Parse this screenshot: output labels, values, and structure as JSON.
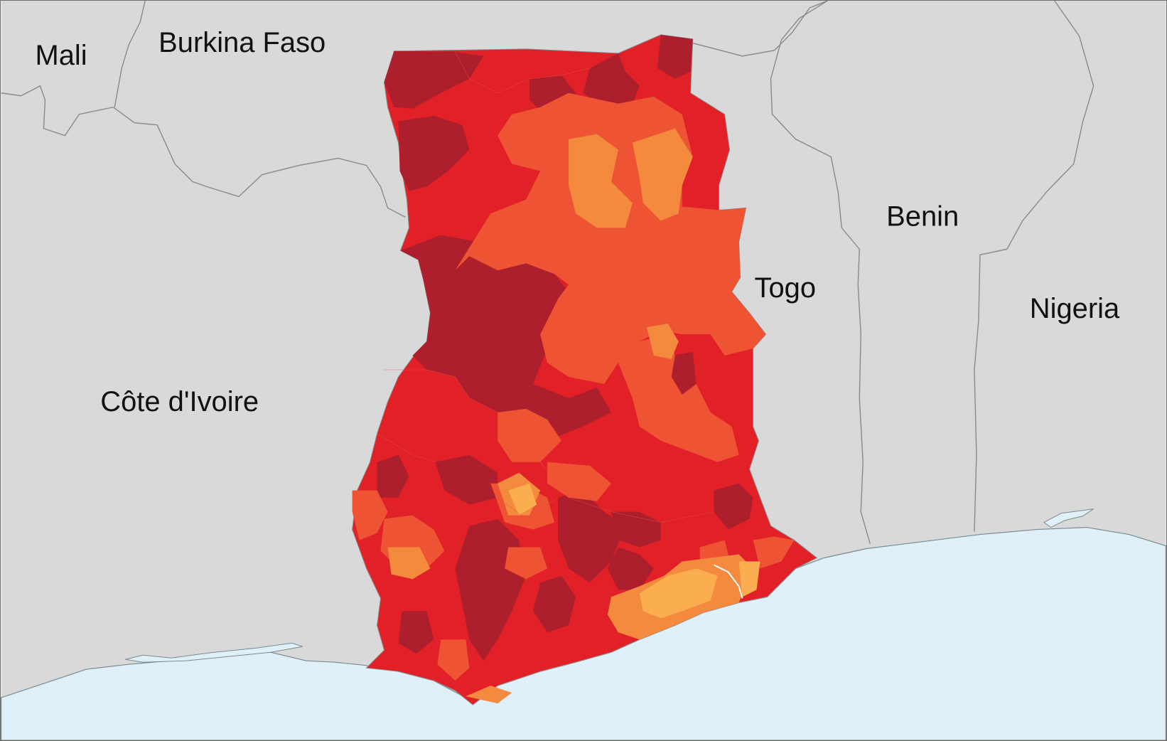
{
  "map": {
    "countries": [
      {
        "id": "mali",
        "label": "Mali"
      },
      {
        "id": "burkina-faso",
        "label": "Burkina Faso"
      },
      {
        "id": "cote-divoire",
        "label": "Côte d'Ivoire"
      },
      {
        "id": "togo",
        "label": "Togo"
      },
      {
        "id": "benin",
        "label": "Benin"
      },
      {
        "id": "nigeria",
        "label": "Nigeria"
      }
    ],
    "colors": {
      "land": "#d9d9d9",
      "land_border": "#8a8a8a",
      "sea": "#dff0f8",
      "choropleth_scale": [
        "#ad1f2c",
        "#e12127",
        "#ee5333",
        "#f48a3e",
        "#fbae50"
      ]
    }
  }
}
